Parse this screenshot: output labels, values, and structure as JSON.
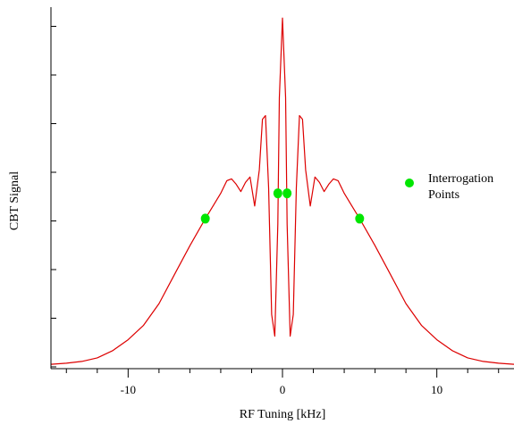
{
  "chart_data": {
    "type": "line",
    "title": "",
    "xlabel": "RF Tuning [kHz]",
    "ylabel": "CBT Signal",
    "xlim": [
      -15,
      15
    ],
    "ylim": [
      0,
      1
    ],
    "x_ticks": [
      -10,
      0,
      10
    ],
    "x_tick_labels": [
      "-10",
      "0",
      "10"
    ],
    "y_tick_labels_shown": false,
    "grid": false,
    "legend": {
      "placement": "right",
      "entries": [
        {
          "label_lines": [
            "Interrogation",
            "Points"
          ],
          "color": "#00e600",
          "marker": "circle"
        }
      ]
    },
    "series": [
      {
        "color": "#dd0000",
        "x": [
          -15.0,
          -14.0,
          -13.0,
          -12.0,
          -11.0,
          -10.0,
          -9.0,
          -8.0,
          -7.0,
          -6.0,
          -5.0,
          -4.5,
          -4.0,
          -3.6,
          -3.3,
          -3.0,
          -2.7,
          -2.4,
          -2.1,
          -1.8,
          -1.5,
          -1.3,
          -1.1,
          -0.9,
          -0.7,
          -0.5,
          -0.3,
          -0.2,
          0.0,
          0.2,
          0.3,
          0.5,
          0.7,
          0.9,
          1.1,
          1.3,
          1.5,
          1.8,
          2.1,
          2.4,
          2.7,
          3.0,
          3.3,
          3.6,
          4.0,
          4.5,
          5.0,
          6.0,
          7.0,
          8.0,
          9.0,
          10.0,
          11.0,
          12.0,
          13.0,
          14.0,
          15.0
        ],
        "y": [
          0.012,
          0.015,
          0.02,
          0.03,
          0.05,
          0.08,
          0.12,
          0.18,
          0.26,
          0.34,
          0.415,
          0.45,
          0.485,
          0.52,
          0.525,
          0.51,
          0.49,
          0.515,
          0.53,
          0.45,
          0.55,
          0.69,
          0.7,
          0.5,
          0.15,
          0.09,
          0.4,
          0.75,
          0.97,
          0.75,
          0.4,
          0.09,
          0.15,
          0.5,
          0.7,
          0.69,
          0.55,
          0.45,
          0.53,
          0.515,
          0.49,
          0.51,
          0.525,
          0.52,
          0.485,
          0.45,
          0.415,
          0.34,
          0.26,
          0.18,
          0.12,
          0.08,
          0.05,
          0.03,
          0.02,
          0.015,
          0.012
        ]
      },
      {
        "name": "Interrogation Points",
        "type": "scatter",
        "color": "#00e600",
        "x": [
          -5.0,
          -0.3,
          0.3,
          5.0
        ],
        "y": [
          0.415,
          0.485,
          0.485,
          0.415
        ]
      }
    ]
  }
}
